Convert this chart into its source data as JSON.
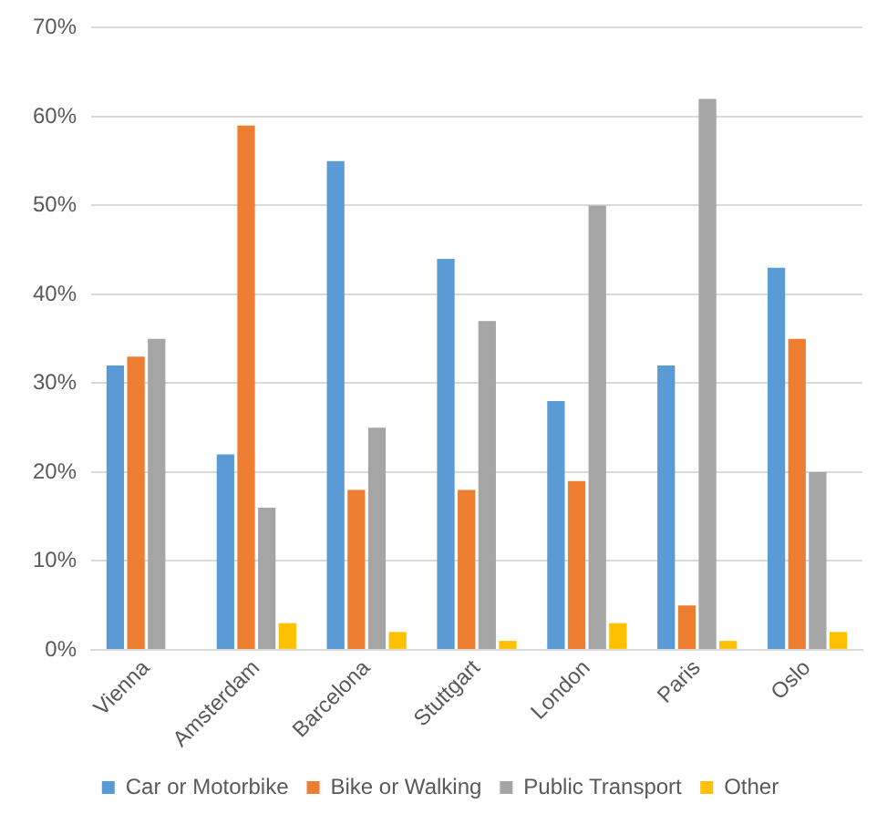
{
  "chart_data": {
    "type": "bar",
    "categories": [
      "Vienna",
      "Amsterdam",
      "Barcelona",
      "Stuttgart",
      "London",
      "Paris",
      "Oslo"
    ],
    "series": [
      {
        "name": "Car or Motorbike",
        "color": "#5b9bd5",
        "values": [
          32,
          22,
          55,
          44,
          28,
          32,
          43
        ]
      },
      {
        "name": "Bike or Walking",
        "color": "#ed7d31",
        "values": [
          33,
          59,
          18,
          18,
          19,
          5,
          35
        ]
      },
      {
        "name": "Public Transport",
        "color": "#a5a5a5",
        "values": [
          35,
          16,
          25,
          37,
          50,
          62,
          20
        ]
      },
      {
        "name": "Other",
        "color": "#ffc000",
        "values": [
          0,
          3,
          2,
          1,
          3,
          1,
          2
        ]
      }
    ],
    "ylim": [
      0,
      70
    ],
    "yticks": [
      {
        "value": 0,
        "label": "0%"
      },
      {
        "value": 10,
        "label": "10%"
      },
      {
        "value": 20,
        "label": "20%"
      },
      {
        "value": 30,
        "label": "30%"
      },
      {
        "value": 40,
        "label": "40%"
      },
      {
        "value": 50,
        "label": "50%"
      },
      {
        "value": 60,
        "label": "60%"
      },
      {
        "value": 70,
        "label": "70%"
      }
    ],
    "grid": "y",
    "legend": "bottom"
  }
}
